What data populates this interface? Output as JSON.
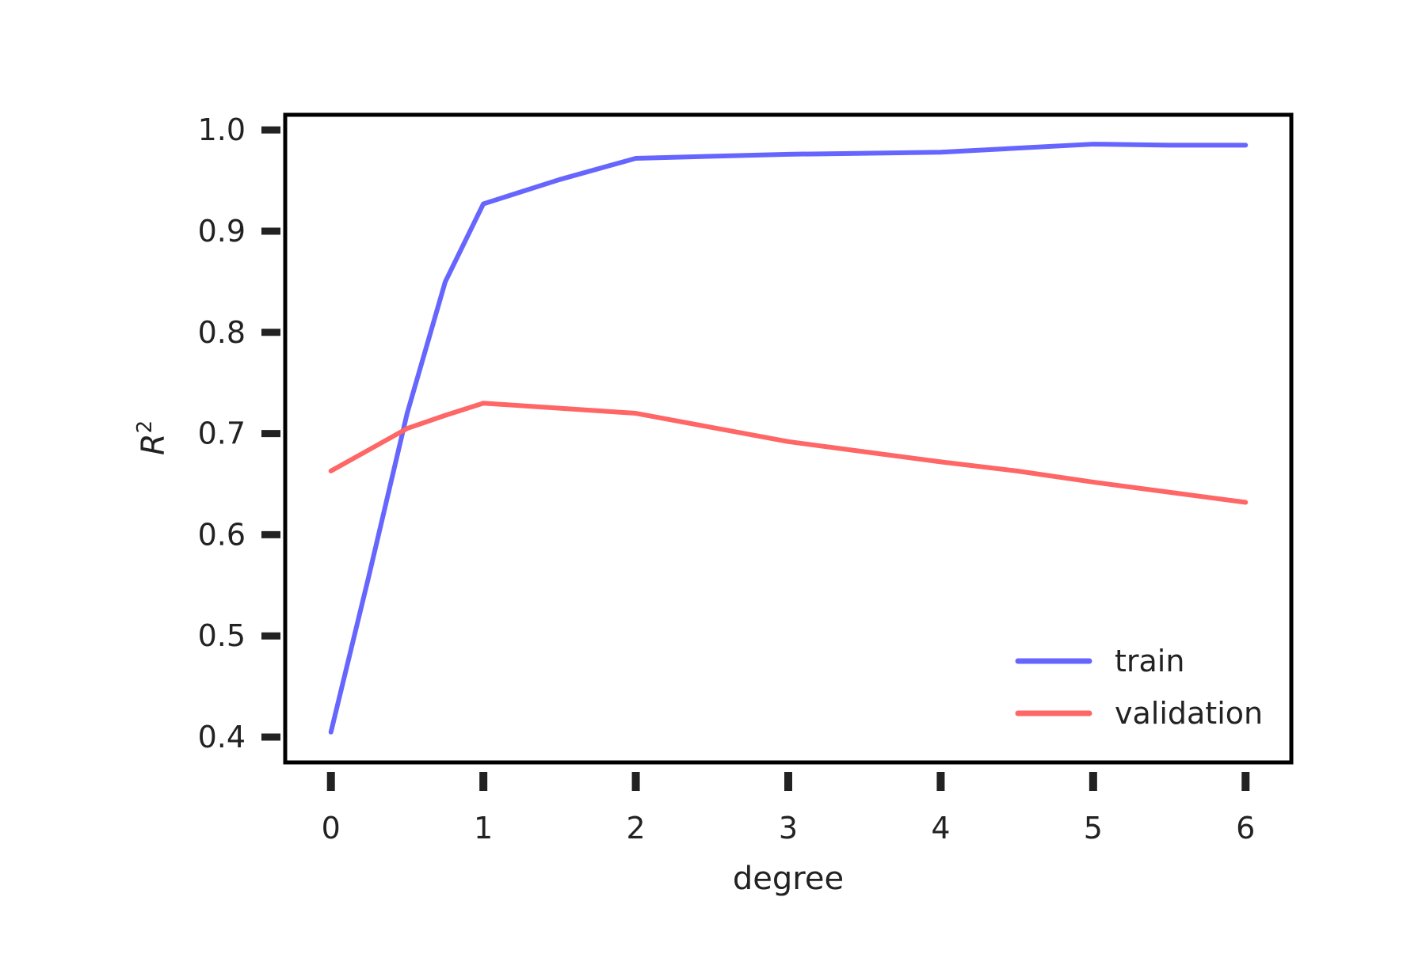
{
  "chart_data": {
    "type": "line",
    "title": "",
    "xlabel": "degree",
    "ylabel": "R",
    "ylabel_superscript": "2",
    "x": [
      0,
      0.25,
      0.5,
      0.75,
      1,
      1.5,
      2,
      2.5,
      3,
      3.5,
      4,
      4.5,
      5,
      5.5,
      6
    ],
    "x_ticks": [
      "0",
      "1",
      "2",
      "3",
      "4",
      "5",
      "6"
    ],
    "y_ticks": [
      "0.4",
      "0.5",
      "0.6",
      "0.7",
      "0.8",
      "0.9",
      "1.0"
    ],
    "xlim": [
      -0.3,
      6.3
    ],
    "ylim": [
      0.375,
      1.015
    ],
    "grid": false,
    "legend_position": "bottom-right",
    "series": [
      {
        "name": "train",
        "color": "#6666ff",
        "values": [
          0.405,
          0.56,
          0.72,
          0.85,
          0.927,
          0.951,
          0.972,
          0.974,
          0.976,
          0.977,
          0.978,
          0.982,
          0.986,
          0.985,
          0.985
        ]
      },
      {
        "name": "validation",
        "color": "#ff6666",
        "values": [
          0.663,
          0.684,
          0.705,
          0.718,
          0.73,
          0.725,
          0.72,
          0.706,
          0.692,
          0.682,
          0.672,
          0.663,
          0.652,
          0.642,
          0.632
        ]
      }
    ]
  }
}
